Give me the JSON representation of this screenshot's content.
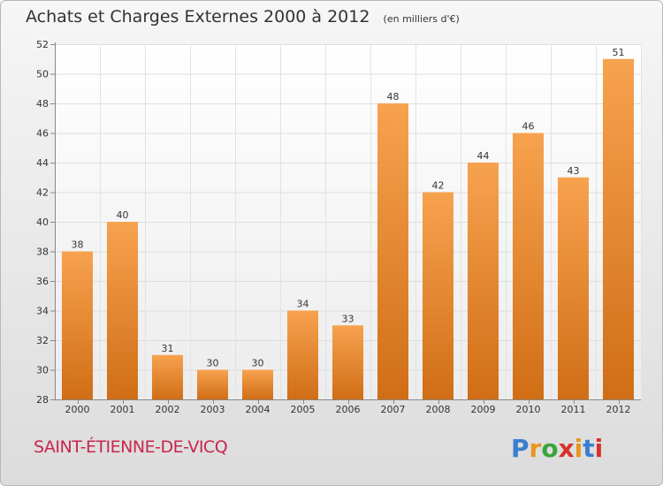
{
  "title": "Achats et Charges Externes 2000 à 2012",
  "subtitle": "(en milliers d'€)",
  "commune": "SAINT-ÉTIENNE-DE-VICQ",
  "logo": {
    "letters": [
      "P",
      "r",
      "o",
      "x",
      "i",
      "t",
      "i"
    ],
    "colors": [
      "#3a7fd0",
      "#e8961e",
      "#3aa53a",
      "#d8322b",
      "#e8961e",
      "#3a7fd0",
      "#d8322b"
    ]
  },
  "colors": {
    "bar_top": "#f7a24f",
    "bar_bottom": "#d06e16",
    "commune": "#c8264d"
  },
  "chart_data": {
    "type": "bar",
    "title": "Achats et Charges Externes 2000 à 2012",
    "subtitle": "(en milliers d'€)",
    "xlabel": "",
    "ylabel": "",
    "categories": [
      "2000",
      "2001",
      "2002",
      "2003",
      "2004",
      "2005",
      "2006",
      "2007",
      "2008",
      "2009",
      "2010",
      "2011",
      "2012"
    ],
    "values": [
      38,
      40,
      31,
      30,
      30,
      34,
      33,
      48,
      42,
      44,
      46,
      43,
      51
    ],
    "ylim": [
      28,
      52
    ],
    "yticks": [
      28,
      30,
      32,
      34,
      36,
      38,
      40,
      42,
      44,
      46,
      48,
      50,
      52
    ],
    "grid": true,
    "legend": "none"
  }
}
